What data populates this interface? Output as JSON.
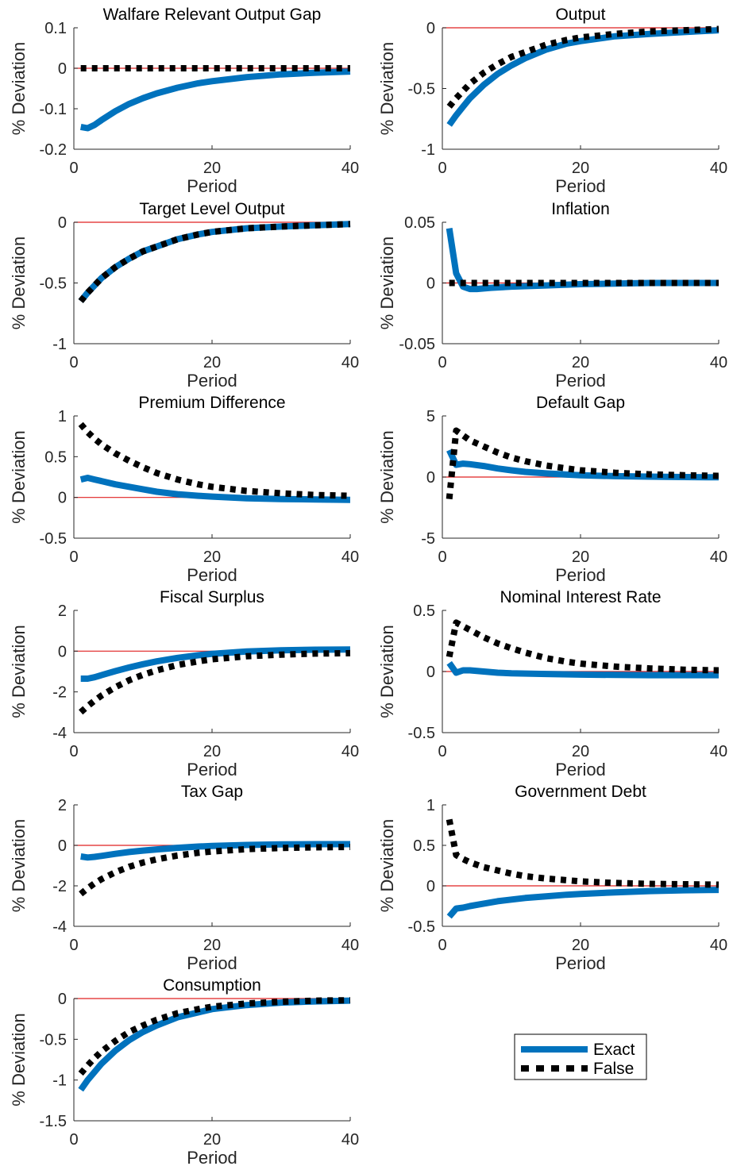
{
  "chart_data": [
    {
      "id": "welfare",
      "type": "line",
      "title": "Walfare Relevant Output Gap",
      "xlabel": "Period",
      "ylabel": "% Deviation",
      "xlim": [
        0,
        40
      ],
      "ylim": [
        -0.2,
        0.1
      ],
      "xticks": [
        0,
        20,
        40
      ],
      "yticks": [
        -0.2,
        -0.1,
        0,
        0.1
      ],
      "yticklabels": [
        "-0.2",
        "-0.1",
        "0",
        "0.1"
      ],
      "series": [
        {
          "name": "Exact",
          "x": [
            1,
            2,
            3,
            4,
            6,
            8,
            10,
            12,
            15,
            18,
            20,
            25,
            30,
            35,
            40
          ],
          "values": [
            -0.145,
            -0.148,
            -0.14,
            -0.128,
            -0.106,
            -0.088,
            -0.074,
            -0.062,
            -0.048,
            -0.037,
            -0.032,
            -0.022,
            -0.015,
            -0.011,
            -0.008
          ]
        },
        {
          "name": "False",
          "x": [
            1,
            40
          ],
          "values": [
            0,
            0
          ]
        }
      ]
    },
    {
      "id": "output",
      "type": "line",
      "title": "Output",
      "xlabel": "Period",
      "ylabel": "% Deviation",
      "xlim": [
        0,
        40
      ],
      "ylim": [
        -1,
        0
      ],
      "xticks": [
        0,
        20,
        40
      ],
      "yticks": [
        -1,
        -0.5,
        0
      ],
      "yticklabels": [
        "-1",
        "-0.5",
        "0"
      ],
      "series": [
        {
          "name": "Exact",
          "x": [
            1,
            2,
            3,
            4,
            6,
            8,
            10,
            12,
            15,
            18,
            20,
            25,
            30,
            35,
            40
          ],
          "values": [
            -0.8,
            -0.72,
            -0.65,
            -0.58,
            -0.47,
            -0.38,
            -0.31,
            -0.25,
            -0.18,
            -0.13,
            -0.11,
            -0.07,
            -0.05,
            -0.035,
            -0.02
          ]
        },
        {
          "name": "False",
          "x": [
            1,
            2,
            3,
            4,
            6,
            8,
            10,
            12,
            15,
            18,
            20,
            25,
            30,
            35,
            40
          ],
          "values": [
            -0.65,
            -0.58,
            -0.52,
            -0.46,
            -0.37,
            -0.3,
            -0.24,
            -0.2,
            -0.14,
            -0.1,
            -0.08,
            -0.05,
            -0.03,
            -0.02,
            -0.01
          ]
        }
      ]
    },
    {
      "id": "target",
      "type": "line",
      "title": "Target Level Output",
      "xlabel": "Period",
      "ylabel": "% Deviation",
      "xlim": [
        0,
        40
      ],
      "ylim": [
        -1,
        0
      ],
      "xticks": [
        0,
        20,
        40
      ],
      "yticks": [
        -1,
        -0.5,
        0
      ],
      "yticklabels": [
        "-1",
        "-0.5",
        "0"
      ],
      "series": [
        {
          "name": "Exact",
          "x": [
            1,
            2,
            3,
            4,
            6,
            8,
            10,
            12,
            15,
            18,
            20,
            25,
            30,
            35,
            40
          ],
          "values": [
            -0.65,
            -0.58,
            -0.52,
            -0.46,
            -0.37,
            -0.3,
            -0.24,
            -0.2,
            -0.14,
            -0.1,
            -0.08,
            -0.05,
            -0.035,
            -0.025,
            -0.015
          ]
        },
        {
          "name": "False",
          "x": [
            1,
            2,
            3,
            4,
            6,
            8,
            10,
            12,
            15,
            18,
            20,
            25,
            30,
            35,
            40
          ],
          "values": [
            -0.65,
            -0.58,
            -0.52,
            -0.46,
            -0.37,
            -0.3,
            -0.24,
            -0.2,
            -0.14,
            -0.1,
            -0.08,
            -0.05,
            -0.035,
            -0.025,
            -0.015
          ]
        }
      ]
    },
    {
      "id": "inflation",
      "type": "line",
      "title": "Inflation",
      "xlabel": "Period",
      "ylabel": "% Deviation",
      "xlim": [
        0,
        40
      ],
      "ylim": [
        -0.05,
        0.05
      ],
      "xticks": [
        0,
        20,
        40
      ],
      "yticks": [
        -0.05,
        0,
        0.05
      ],
      "yticklabels": [
        "-0.05",
        "0",
        "0.05"
      ],
      "series": [
        {
          "name": "Exact",
          "x": [
            1,
            2,
            3,
            4,
            5,
            7,
            10,
            15,
            20,
            30,
            40
          ],
          "values": [
            0.045,
            0.008,
            -0.003,
            -0.005,
            -0.005,
            -0.004,
            -0.003,
            -0.002,
            -0.001,
            0,
            0
          ]
        },
        {
          "name": "False",
          "x": [
            1,
            40
          ],
          "values": [
            0,
            0
          ]
        }
      ]
    },
    {
      "id": "premium",
      "type": "line",
      "title": "Premium Difference",
      "xlabel": "Period",
      "ylabel": "% Deviation",
      "xlim": [
        0,
        40
      ],
      "ylim": [
        -0.5,
        1
      ],
      "xticks": [
        0,
        20,
        40
      ],
      "yticks": [
        -0.5,
        0,
        0.5,
        1
      ],
      "yticklabels": [
        "-0.5",
        "0",
        "0.5",
        "1"
      ],
      "series": [
        {
          "name": "Exact",
          "x": [
            1,
            2,
            3,
            4,
            6,
            8,
            10,
            12,
            15,
            18,
            20,
            25,
            30,
            35,
            40
          ],
          "values": [
            0.22,
            0.24,
            0.22,
            0.2,
            0.16,
            0.13,
            0.1,
            0.07,
            0.04,
            0.02,
            0.01,
            -0.01,
            -0.02,
            -0.025,
            -0.03
          ]
        },
        {
          "name": "False",
          "x": [
            1,
            2,
            3,
            4,
            6,
            8,
            10,
            12,
            15,
            18,
            20,
            25,
            30,
            35,
            40
          ],
          "values": [
            0.9,
            0.8,
            0.72,
            0.65,
            0.54,
            0.45,
            0.37,
            0.3,
            0.22,
            0.16,
            0.13,
            0.08,
            0.05,
            0.03,
            0.02
          ]
        }
      ]
    },
    {
      "id": "default",
      "type": "line",
      "title": "Default Gap",
      "xlabel": "Period",
      "ylabel": "% Deviation",
      "xlim": [
        0,
        40
      ],
      "ylim": [
        -5,
        5
      ],
      "xticks": [
        0,
        20,
        40
      ],
      "yticks": [
        -5,
        0,
        5
      ],
      "yticklabels": [
        "-5",
        "0",
        "5"
      ],
      "series": [
        {
          "name": "Exact",
          "x": [
            1,
            2,
            3,
            4,
            6,
            8,
            10,
            12,
            15,
            18,
            20,
            25,
            30,
            35,
            40
          ],
          "values": [
            2.2,
            1.0,
            1.1,
            1.05,
            0.9,
            0.7,
            0.55,
            0.42,
            0.3,
            0.2,
            0.15,
            0.07,
            0.03,
            0,
            -0.02
          ]
        },
        {
          "name": "False",
          "x": [
            1,
            2,
            3,
            4,
            6,
            8,
            10,
            12,
            15,
            18,
            20,
            25,
            30,
            35,
            40
          ],
          "values": [
            -1.8,
            3.8,
            3.4,
            3.0,
            2.5,
            2.0,
            1.6,
            1.3,
            0.95,
            0.7,
            0.55,
            0.35,
            0.22,
            0.15,
            0.1
          ]
        }
      ]
    },
    {
      "id": "fiscal",
      "type": "line",
      "title": "Fiscal Surplus",
      "xlabel": "Period",
      "ylabel": "% Deviation",
      "xlim": [
        0,
        40
      ],
      "ylim": [
        -4,
        2
      ],
      "xticks": [
        0,
        20,
        40
      ],
      "yticks": [
        -4,
        -2,
        0,
        2
      ],
      "yticklabels": [
        "-4",
        "-2",
        "0",
        "2"
      ],
      "series": [
        {
          "name": "Exact",
          "x": [
            1,
            2,
            3,
            4,
            6,
            8,
            10,
            12,
            15,
            18,
            20,
            25,
            30,
            35,
            40
          ],
          "values": [
            -1.35,
            -1.35,
            -1.28,
            -1.18,
            -0.98,
            -0.8,
            -0.64,
            -0.5,
            -0.33,
            -0.2,
            -0.13,
            -0.02,
            0.04,
            0.07,
            0.08
          ]
        },
        {
          "name": "False",
          "x": [
            1,
            2,
            3,
            4,
            6,
            8,
            10,
            12,
            15,
            18,
            20,
            25,
            30,
            35,
            40
          ],
          "values": [
            -3.0,
            -2.7,
            -2.43,
            -2.18,
            -1.77,
            -1.43,
            -1.16,
            -0.94,
            -0.68,
            -0.5,
            -0.4,
            -0.25,
            -0.17,
            -0.12,
            -0.1
          ]
        }
      ]
    },
    {
      "id": "nominal",
      "type": "line",
      "title": "Nominal Interest Rate",
      "xlabel": "Period",
      "ylabel": "% Deviation",
      "xlim": [
        0,
        40
      ],
      "ylim": [
        -0.5,
        0.5
      ],
      "xticks": [
        0,
        20,
        40
      ],
      "yticks": [
        -0.5,
        0,
        0.5
      ],
      "yticklabels": [
        "-0.5",
        "0",
        "0.5"
      ],
      "series": [
        {
          "name": "Exact",
          "x": [
            1,
            2,
            3,
            4,
            6,
            8,
            10,
            15,
            20,
            25,
            30,
            35,
            40
          ],
          "values": [
            0.07,
            -0.01,
            0.01,
            0.01,
            0.0,
            -0.01,
            -0.015,
            -0.02,
            -0.025,
            -0.028,
            -0.03,
            -0.03,
            -0.03
          ]
        },
        {
          "name": "False",
          "x": [
            1,
            2,
            3,
            4,
            6,
            8,
            10,
            12,
            15,
            18,
            20,
            25,
            30,
            35,
            40
          ],
          "values": [
            0.12,
            0.4,
            0.37,
            0.34,
            0.28,
            0.23,
            0.19,
            0.155,
            0.11,
            0.08,
            0.065,
            0.04,
            0.025,
            0.015,
            0.01
          ]
        }
      ]
    },
    {
      "id": "tax",
      "type": "line",
      "title": "Tax Gap",
      "xlabel": "Period",
      "ylabel": "% Deviation",
      "xlim": [
        0,
        40
      ],
      "ylim": [
        -4,
        2
      ],
      "xticks": [
        0,
        20,
        40
      ],
      "yticks": [
        -4,
        -2,
        0,
        2
      ],
      "yticklabels": [
        "-4",
        "-2",
        "0",
        "2"
      ],
      "series": [
        {
          "name": "Exact",
          "x": [
            1,
            2,
            3,
            4,
            6,
            8,
            10,
            12,
            15,
            18,
            20,
            25,
            30,
            35,
            40
          ],
          "values": [
            -0.55,
            -0.6,
            -0.57,
            -0.52,
            -0.42,
            -0.33,
            -0.26,
            -0.2,
            -0.12,
            -0.06,
            -0.03,
            0.02,
            0.05,
            0.06,
            0.06
          ]
        },
        {
          "name": "False",
          "x": [
            1,
            2,
            3,
            4,
            6,
            8,
            10,
            12,
            15,
            18,
            20,
            25,
            30,
            35,
            40
          ],
          "values": [
            -2.4,
            -2.12,
            -1.88,
            -1.67,
            -1.33,
            -1.06,
            -0.85,
            -0.69,
            -0.5,
            -0.37,
            -0.3,
            -0.19,
            -0.13,
            -0.1,
            -0.08
          ]
        }
      ]
    },
    {
      "id": "debt",
      "type": "line",
      "title": "Government Debt",
      "xlabel": "Period",
      "ylabel": "% Deviation",
      "xlim": [
        0,
        40
      ],
      "ylim": [
        -0.5,
        1
      ],
      "xticks": [
        0,
        20,
        40
      ],
      "yticks": [
        -0.5,
        0,
        0.5,
        1
      ],
      "yticklabels": [
        "-0.5",
        "0",
        "0.5",
        "1"
      ],
      "series": [
        {
          "name": "Exact",
          "x": [
            1,
            2,
            3,
            4,
            6,
            8,
            10,
            12,
            15,
            18,
            20,
            25,
            30,
            35,
            40
          ],
          "values": [
            -0.38,
            -0.28,
            -0.27,
            -0.25,
            -0.22,
            -0.19,
            -0.17,
            -0.15,
            -0.13,
            -0.11,
            -0.1,
            -0.08,
            -0.065,
            -0.055,
            -0.05
          ]
        },
        {
          "name": "False",
          "x": [
            1,
            2,
            3,
            4,
            6,
            8,
            10,
            12,
            15,
            18,
            20,
            25,
            30,
            35,
            40
          ],
          "values": [
            0.82,
            0.38,
            0.33,
            0.29,
            0.23,
            0.19,
            0.15,
            0.12,
            0.09,
            0.07,
            0.055,
            0.035,
            0.025,
            0.02,
            0.015
          ]
        }
      ]
    },
    {
      "id": "consumption",
      "type": "line",
      "title": "Consumption",
      "xlabel": "Period",
      "ylabel": "% Deviation",
      "xlim": [
        0,
        40
      ],
      "ylim": [
        -1.5,
        0
      ],
      "xticks": [
        0,
        20,
        40
      ],
      "yticks": [
        -1.5,
        -1,
        -0.5,
        0
      ],
      "yticklabels": [
        "-1.5",
        "-1",
        "-0.5",
        "0"
      ],
      "series": [
        {
          "name": "Exact",
          "x": [
            1,
            2,
            3,
            4,
            6,
            8,
            10,
            12,
            15,
            18,
            20,
            25,
            30,
            35,
            40
          ],
          "values": [
            -1.12,
            -1.0,
            -0.9,
            -0.8,
            -0.64,
            -0.51,
            -0.41,
            -0.33,
            -0.23,
            -0.17,
            -0.13,
            -0.08,
            -0.05,
            -0.035,
            -0.025
          ]
        },
        {
          "name": "False",
          "x": [
            1,
            2,
            3,
            4,
            6,
            8,
            10,
            12,
            15,
            18,
            20,
            25,
            30,
            35,
            40
          ],
          "values": [
            -0.92,
            -0.82,
            -0.73,
            -0.65,
            -0.52,
            -0.41,
            -0.33,
            -0.26,
            -0.18,
            -0.13,
            -0.1,
            -0.06,
            -0.04,
            -0.025,
            -0.02
          ]
        }
      ]
    }
  ],
  "legend": {
    "items": [
      {
        "label": "Exact",
        "style": "solid",
        "color": "#0072BD"
      },
      {
        "label": "False",
        "style": "dotted",
        "color": "#000000"
      }
    ]
  },
  "colors": {
    "exact": "#0072BD",
    "false": "#000000",
    "zero_line": "#e02020",
    "axis": "#262626"
  }
}
